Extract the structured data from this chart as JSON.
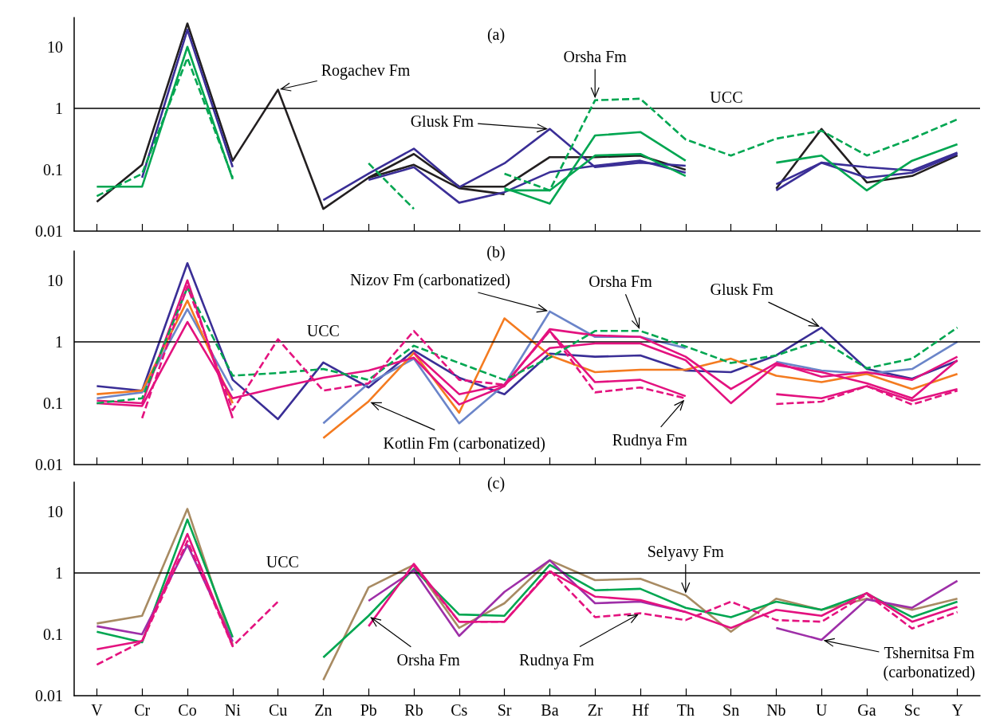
{
  "chart_data": [
    {
      "type": "line",
      "title": "(a)",
      "categories": [
        "V",
        "Cr",
        "Co",
        "Ni",
        "Cu",
        "Zn",
        "Pb",
        "Rb",
        "Cs",
        "Sr",
        "Ba",
        "Zr",
        "Hf",
        "Th",
        "Sn",
        "Nb",
        "U",
        "Ga",
        "Sc",
        "Y"
      ],
      "log": true,
      "ylim": [
        0.01,
        30
      ],
      "yticks": [
        0.01,
        0.1,
        1,
        10
      ],
      "grid": false,
      "marker": "none",
      "tick_labels": "y",
      "ref_lines": [
        {
          "axis": "y",
          "value": 1,
          "label": "UCC",
          "color": "#000000"
        }
      ],
      "annotations": [
        {
          "text": "Rogachev Fm",
          "x": "Cu",
          "y": 2.0
        },
        {
          "text": "Glusk Fm",
          "x": "Ba",
          "y": 0.46
        },
        {
          "text": "Orsha Fm",
          "x": "Zr",
          "y": 1.35
        }
      ],
      "series": [
        {
          "color": "#231f20",
          "line_style": "solid",
          "values": [
            0.03,
            0.12,
            24,
            0.14,
            2.0,
            0.023,
            0.074,
            0.18,
            0.053,
            0.053,
            0.16,
            0.16,
            0.17,
            0.1,
            null,
            0.049,
            0.46,
            0.062,
            0.079,
            0.17
          ]
        },
        {
          "color": "#231f20",
          "line_style": "solid",
          "values": [
            null,
            null,
            null,
            null,
            null,
            null,
            0.074,
            0.12,
            0.05,
            0.04,
            null,
            null,
            null,
            null,
            null,
            null,
            null,
            null,
            null,
            null
          ]
        },
        {
          "color": "#3a2e96",
          "line_style": "solid",
          "values": [
            null,
            0.074,
            19,
            0.11,
            null,
            0.032,
            0.086,
            0.22,
            0.052,
            0.127,
            0.46,
            0.11,
            0.13,
            0.116,
            null,
            0.058,
            0.13,
            0.11,
            0.097,
            0.19
          ]
        },
        {
          "color": "#3b2f97",
          "line_style": "solid",
          "values": [
            null,
            null,
            null,
            null,
            null,
            null,
            0.068,
            0.11,
            0.029,
            0.043,
            0.091,
            0.116,
            0.14,
            0.089,
            null,
            0.046,
            0.13,
            0.074,
            0.089,
            0.18
          ]
        },
        {
          "color": "#00a651",
          "line_style": "dashed",
          "values": [
            0.037,
            0.086,
            6.6,
            0.074,
            null,
            null,
            0.127,
            0.023,
            null,
            0.086,
            0.046,
            1.35,
            1.43,
            0.31,
            0.17,
            0.32,
            0.43,
            0.17,
            0.32,
            0.66
          ]
        },
        {
          "color": "#00a651",
          "line_style": "solid",
          "values": [
            0.053,
            0.053,
            10,
            0.07,
            null,
            null,
            null,
            null,
            null,
            0.05,
            0.028,
            0.36,
            0.41,
            0.14,
            null,
            0.13,
            0.17,
            0.046,
            0.14,
            0.26
          ]
        },
        {
          "color": "#00a651",
          "line_style": "solid",
          "values": [
            null,
            null,
            null,
            null,
            null,
            null,
            null,
            null,
            null,
            0.046,
            0.046,
            0.17,
            0.18,
            0.079,
            null,
            null,
            null,
            null,
            null,
            null
          ]
        }
      ]
    },
    {
      "type": "line",
      "title": "(b)",
      "categories": [
        "V",
        "Cr",
        "Co",
        "Ni",
        "Cu",
        "Zn",
        "Pb",
        "Rb",
        "Cs",
        "Sr",
        "Ba",
        "Zr",
        "Hf",
        "Th",
        "Sn",
        "Nb",
        "U",
        "Ga",
        "Sc",
        "Y"
      ],
      "log": true,
      "ylim": [
        0.01,
        30
      ],
      "yticks": [
        0.01,
        0.1,
        1,
        10
      ],
      "grid": false,
      "marker": "none",
      "tick_labels": "y",
      "ref_lines": [
        {
          "axis": "y",
          "value": 1,
          "label": "UCC",
          "color": "#000000"
        }
      ],
      "annotations": [
        {
          "text": "Nizov Fm (carbonatized)",
          "x": "Ba",
          "y": 3.1
        },
        {
          "text": "Orsha Fm",
          "x": "Hf",
          "y": 1.5
        },
        {
          "text": "Glusk Fm",
          "x": "U",
          "y": 1.7
        },
        {
          "text": "Kotlin Fm (carbonatized)",
          "x": "Pb",
          "y": 0.107
        },
        {
          "text": "Rudnya Fm",
          "x": "Th",
          "y": 0.12
        }
      ],
      "series": [
        {
          "color": "#3a2e96",
          "line_style": "solid",
          "values": [
            0.19,
            0.16,
            19,
            0.24,
            0.055,
            0.46,
            0.18,
            0.72,
            0.26,
            0.14,
            0.64,
            0.57,
            0.6,
            0.34,
            0.32,
            0.6,
            1.7,
            0.36,
            0.25,
            0.49
          ]
        },
        {
          "color": "#6b85c9",
          "line_style": "solid",
          "values": [
            0.12,
            0.15,
            3.4,
            0.16,
            null,
            0.047,
            0.21,
            0.53,
            0.047,
            0.2,
            3.1,
            1.2,
            1.2,
            0.79,
            null,
            0.47,
            0.34,
            0.3,
            0.36,
            1.0
          ]
        },
        {
          "color": "#f47b20",
          "line_style": "solid",
          "values": [
            0.14,
            0.16,
            4.7,
            0.1,
            null,
            0.027,
            0.107,
            0.66,
            0.07,
            2.4,
            0.6,
            0.32,
            0.35,
            0.35,
            0.53,
            0.28,
            0.22,
            0.3,
            0.17,
            0.3
          ]
        },
        {
          "color": "#00a651",
          "line_style": "dashed",
          "values": [
            0.1,
            0.12,
            7.6,
            0.28,
            0.31,
            0.36,
            0.24,
            0.86,
            0.45,
            0.24,
            0.55,
            1.5,
            1.5,
            0.84,
            0.45,
            0.6,
            1.06,
            0.37,
            0.53,
            1.7
          ]
        },
        {
          "color": "#e3127f",
          "line_style": "solid",
          "values": [
            0.1,
            0.09,
            2.1,
            0.12,
            0.18,
            0.26,
            0.34,
            0.55,
            0.095,
            0.19,
            1.6,
            1.27,
            1.2,
            0.57,
            0.17,
            0.45,
            0.27,
            0.32,
            0.24,
            0.57
          ]
        },
        {
          "color": "#e3127f",
          "line_style": "solid",
          "values": [
            0.11,
            0.1,
            10,
            0.057,
            null,
            null,
            null,
            0.66,
            0.14,
            0.2,
            0.79,
            0.94,
            0.94,
            0.5,
            0.1,
            0.42,
            0.32,
            0.21,
            0.12,
            0.5
          ]
        },
        {
          "color": "#e3127f",
          "line_style": "solid",
          "values": [
            null,
            null,
            null,
            null,
            null,
            null,
            null,
            null,
            null,
            0.2,
            1.5,
            0.22,
            0.24,
            0.13,
            null,
            0.14,
            0.12,
            0.19,
            0.11,
            0.17
          ]
        },
        {
          "color": "#e4137f",
          "line_style": "dashed",
          "values": [
            null,
            0.057,
            8,
            0.077,
            1.1,
            0.16,
            0.21,
            1.5,
            0.24,
            0.2,
            1.5,
            0.15,
            0.18,
            0.12,
            null,
            0.097,
            0.106,
            0.19,
            0.095,
            0.16
          ]
        }
      ]
    },
    {
      "type": "line",
      "title": "(c)",
      "categories": [
        "V",
        "Cr",
        "Co",
        "Ni",
        "Cu",
        "Zn",
        "Pb",
        "Rb",
        "Cs",
        "Sr",
        "Ba",
        "Zr",
        "Hf",
        "Th",
        "Sn",
        "Nb",
        "U",
        "Ga",
        "Sc",
        "Y"
      ],
      "log": true,
      "ylim": [
        0.01,
        30
      ],
      "yticks": [
        0.01,
        0.1,
        1,
        10
      ],
      "grid": false,
      "marker": "none",
      "ref_lines": [
        {
          "axis": "y",
          "value": 1,
          "label": "UCC",
          "color": "#000000"
        }
      ],
      "annotations": [
        {
          "text": "Selyavy Fm",
          "x": "Th",
          "y": 0.43
        },
        {
          "text": "Orsha Fm",
          "x": "Pb",
          "y": 0.2
        },
        {
          "text": "Rudnya Fm",
          "x": "Hf",
          "y": 0.22
        },
        {
          "text": "Tshernitsa Fm\n(carbonatized)",
          "x": "U",
          "y": 0.081
        }
      ],
      "series": [
        {
          "color": "#a88b63",
          "line_style": "solid",
          "values": [
            0.15,
            0.2,
            11,
            0.068,
            null,
            0.018,
            0.58,
            1.35,
            0.127,
            0.32,
            1.6,
            0.76,
            0.8,
            0.43,
            0.11,
            0.38,
            0.25,
            0.38,
            0.25,
            0.38
          ]
        },
        {
          "color": "#00a651",
          "line_style": "solid",
          "values": [
            0.11,
            0.074,
            7.4,
            0.089,
            null,
            0.042,
            0.2,
            1.16,
            0.21,
            0.2,
            1.35,
            0.52,
            0.55,
            0.27,
            0.19,
            0.34,
            0.25,
            0.46,
            0.19,
            0.34
          ]
        },
        {
          "color": "#9e2fa8",
          "line_style": "solid",
          "values": [
            0.135,
            0.1,
            2.85,
            0.076,
            null,
            null,
            0.35,
            1.1,
            0.094,
            0.49,
            1.6,
            0.32,
            0.34,
            0.23,
            null,
            0.127,
            0.081,
            0.37,
            0.27,
            0.74
          ]
        },
        {
          "color": "#e3127f",
          "line_style": "solid",
          "values": [
            0.057,
            0.078,
            4.3,
            0.064,
            null,
            null,
            0.135,
            1.4,
            0.16,
            0.16,
            1.06,
            0.41,
            0.36,
            0.23,
            0.127,
            0.25,
            0.2,
            0.47,
            0.16,
            0.28
          ]
        },
        {
          "color": "#e4137f",
          "line_style": "dashed",
          "values": [
            0.032,
            0.076,
            3.3,
            0.064,
            0.34,
            null,
            null,
            1.3,
            0.16,
            0.16,
            1.1,
            0.19,
            0.22,
            0.17,
            0.34,
            0.17,
            0.16,
            0.45,
            0.124,
            0.23
          ]
        }
      ]
    }
  ]
}
